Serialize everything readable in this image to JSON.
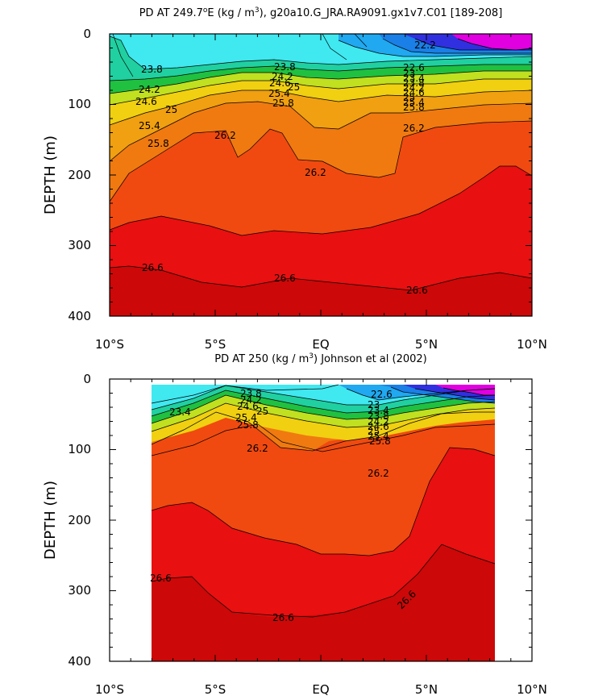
{
  "chart_data": [
    {
      "type": "heatmap",
      "title_prefix": "PD AT 249.7",
      "title_sup": "o",
      "title_mid": "E (kg / m",
      "title_sup2": "3",
      "title_suffix": "), g20a10.G_JRA.RA9091.gx1v7.C01 [189-208]",
      "ylabel": "DEPTH (m)",
      "xlim": [
        -10,
        10
      ],
      "ylim": [
        0,
        400
      ],
      "y_inverted": true,
      "x_ticks": [
        "10°S",
        "5°S",
        "EQ",
        "5°N",
        "10°N"
      ],
      "y_ticks": [
        "0",
        "100",
        "200",
        "300",
        "400"
      ],
      "colors": {
        "lt22": "#e000e0",
        "22_22.6": "#3030e0",
        "22.6_23": "#1a7fe6",
        "23_23.4": "#20a8f0",
        "23.4_23.8": "#40e8f0",
        "23.8_24.2": "#20d0a0",
        "24.2_24.6": "#20c040",
        "24.6_25": "#c0e020",
        "25_25.4": "#f0d010",
        "25.4_25.8": "#f0a010",
        "25.8_26.2": "#f07a10",
        "26.2_26.4": "#f04a10",
        "26.4_26.6": "#e81010",
        "gt26.6": "#cc0808"
      },
      "contour_labels": [
        "23.8",
        "24.2",
        "24.6",
        "25",
        "25.4",
        "25.8",
        "26.2",
        "23.8",
        "24.2",
        "24.6",
        "25",
        "25.4",
        "25.8",
        "26.2",
        "22.2",
        "22.6",
        "23",
        "23.4",
        "23.8",
        "24.2",
        "24.6",
        "25",
        "25.4",
        "25.8",
        "26.2",
        "26.6",
        "26.6",
        "26.6"
      ]
    },
    {
      "type": "heatmap",
      "title_prefix": "PD AT 250 (kg / m",
      "title_sup": "3",
      "title_suffix": ") Johnson et al (2002)",
      "ylabel": "DEPTH (m)",
      "xlim": [
        -10,
        10
      ],
      "ylim": [
        0,
        400
      ],
      "y_inverted": true,
      "data_x_range": [
        -8,
        8.2
      ],
      "x_ticks": [
        "10°S",
        "5°S",
        "EQ",
        "5°N",
        "10°N"
      ],
      "y_ticks": [
        "0",
        "100",
        "200",
        "300",
        "400"
      ],
      "contour_labels": [
        "23.4",
        "23.8",
        "24.2",
        "24.6",
        "25",
        "25.4",
        "25.8",
        "26.2",
        "22.6",
        "23",
        "23.4",
        "23.8",
        "24.2",
        "24.6",
        "25",
        "25.4",
        "25.8",
        "26.2",
        "26.6",
        "26.6",
        "26.6"
      ]
    }
  ]
}
